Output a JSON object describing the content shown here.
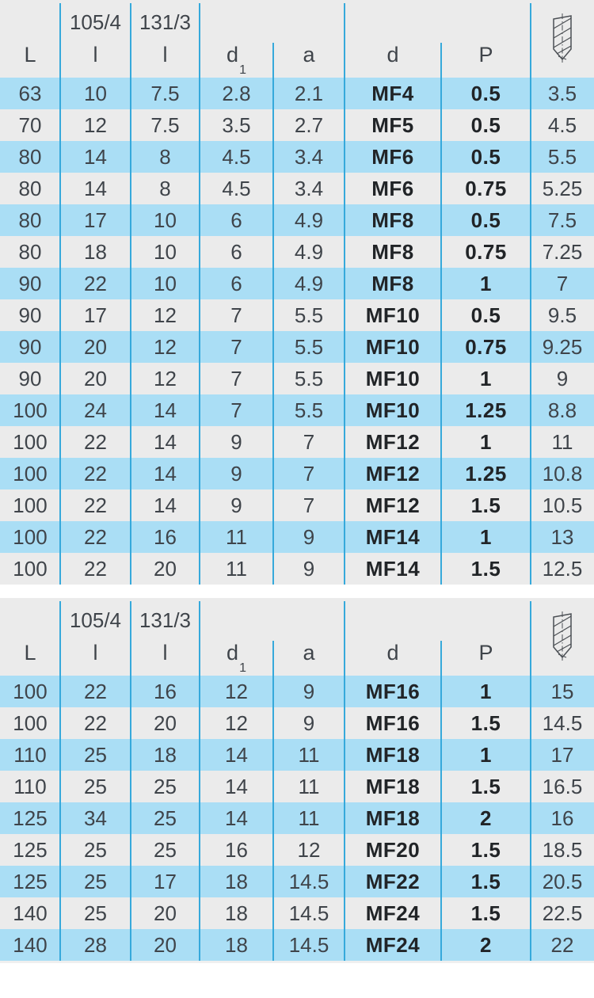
{
  "header": {
    "L": "L",
    "series_105": "105/4",
    "series_131": "131/3",
    "l": "l",
    "d1_base": "d",
    "d1_sub": "1",
    "a": "a",
    "d": "d",
    "P": "P",
    "icon": "drill-bit"
  },
  "colors": {
    "row_blue": "#aadef5",
    "row_gray": "#ebebeb",
    "separator_blue": "#36a9db",
    "text": "#3f444a",
    "text_bold": "#212427"
  },
  "tables": [
    {
      "rows": [
        [
          "63",
          "10",
          "7.5",
          "2.8",
          "2.1",
          "MF4",
          "0.5",
          "3.5"
        ],
        [
          "70",
          "12",
          "7.5",
          "3.5",
          "2.7",
          "MF5",
          "0.5",
          "4.5"
        ],
        [
          "80",
          "14",
          "8",
          "4.5",
          "3.4",
          "MF6",
          "0.5",
          "5.5"
        ],
        [
          "80",
          "14",
          "8",
          "4.5",
          "3.4",
          "MF6",
          "0.75",
          "5.25"
        ],
        [
          "80",
          "17",
          "10",
          "6",
          "4.9",
          "MF8",
          "0.5",
          "7.5"
        ],
        [
          "80",
          "18",
          "10",
          "6",
          "4.9",
          "MF8",
          "0.75",
          "7.25"
        ],
        [
          "90",
          "22",
          "10",
          "6",
          "4.9",
          "MF8",
          "1",
          "7"
        ],
        [
          "90",
          "17",
          "12",
          "7",
          "5.5",
          "MF10",
          "0.5",
          "9.5"
        ],
        [
          "90",
          "20",
          "12",
          "7",
          "5.5",
          "MF10",
          "0.75",
          "9.25"
        ],
        [
          "90",
          "20",
          "12",
          "7",
          "5.5",
          "MF10",
          "1",
          "9"
        ],
        [
          "100",
          "24",
          "14",
          "7",
          "5.5",
          "MF10",
          "1.25",
          "8.8"
        ],
        [
          "100",
          "22",
          "14",
          "9",
          "7",
          "MF12",
          "1",
          "11"
        ],
        [
          "100",
          "22",
          "14",
          "9",
          "7",
          "MF12",
          "1.25",
          "10.8"
        ],
        [
          "100",
          "22",
          "14",
          "9",
          "7",
          "MF12",
          "1.5",
          "10.5"
        ],
        [
          "100",
          "22",
          "16",
          "11",
          "9",
          "MF14",
          "1",
          "13"
        ],
        [
          "100",
          "22",
          "20",
          "11",
          "9",
          "MF14",
          "1.5",
          "12.5"
        ]
      ]
    },
    {
      "rows": [
        [
          "100",
          "22",
          "16",
          "12",
          "9",
          "MF16",
          "1",
          "15"
        ],
        [
          "100",
          "22",
          "20",
          "12",
          "9",
          "MF16",
          "1.5",
          "14.5"
        ],
        [
          "110",
          "25",
          "18",
          "14",
          "11",
          "MF18",
          "1",
          "17"
        ],
        [
          "110",
          "25",
          "25",
          "14",
          "11",
          "MF18",
          "1.5",
          "16.5"
        ],
        [
          "125",
          "34",
          "25",
          "14",
          "11",
          "MF18",
          "2",
          "16"
        ],
        [
          "125",
          "25",
          "25",
          "16",
          "12",
          "MF20",
          "1.5",
          "18.5"
        ],
        [
          "125",
          "25",
          "17",
          "18",
          "14.5",
          "MF22",
          "1.5",
          "20.5"
        ],
        [
          "140",
          "25",
          "20",
          "18",
          "14.5",
          "MF24",
          "1.5",
          "22.5"
        ],
        [
          "140",
          "28",
          "20",
          "18",
          "14.5",
          "MF24",
          "2",
          "22"
        ]
      ]
    }
  ]
}
